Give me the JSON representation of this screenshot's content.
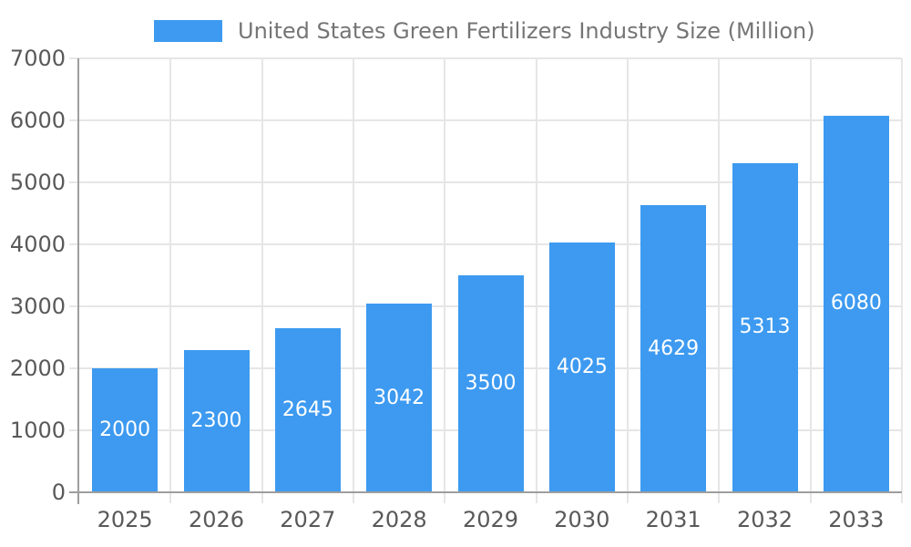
{
  "legend": {
    "label": "United States Green Fertilizers Industry Size (Million)"
  },
  "chart_data": {
    "type": "bar",
    "title": "United States Green Fertilizers Industry Size (Million)",
    "categories": [
      "2025",
      "2026",
      "2027",
      "2028",
      "2029",
      "2030",
      "2031",
      "2032",
      "2033"
    ],
    "values": [
      2000,
      2300,
      2645,
      3042,
      3500,
      4025,
      4629,
      5313,
      6080
    ],
    "xlabel": "",
    "ylabel": "",
    "ylim": [
      0,
      7000
    ],
    "yticks": [
      0,
      1000,
      2000,
      3000,
      4000,
      5000,
      6000,
      7000
    ],
    "grid": true,
    "legend_position": "top",
    "bar_label_position": "inside-center"
  },
  "colors": {
    "bar": "#3D9AF0",
    "grid": "#E6E6E6",
    "axis": "#9E9E9E",
    "tick_label": "#595959",
    "title": "#757575",
    "bar_label": "#FFFFFF",
    "background": "#FFFFFF"
  }
}
